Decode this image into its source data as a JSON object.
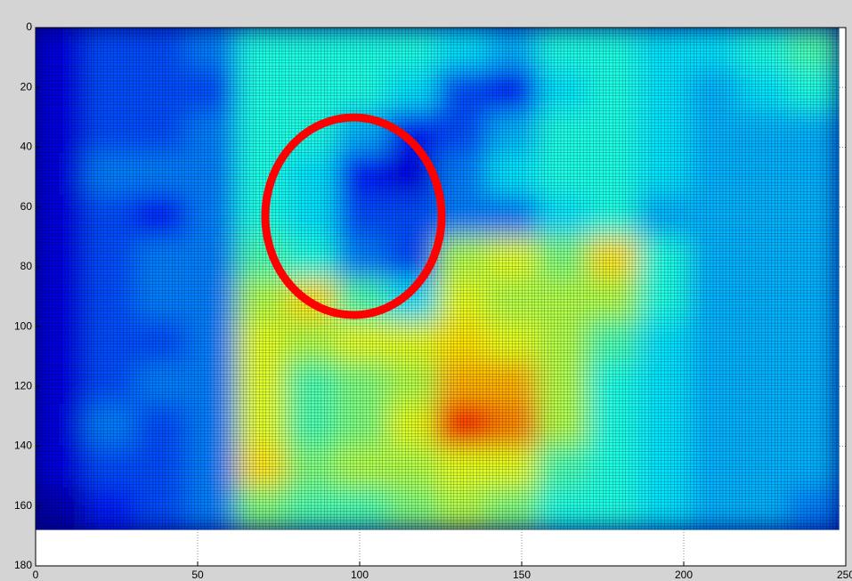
{
  "chart_data": {
    "type": "heatmap",
    "colormap": "jet",
    "clim": [
      0,
      1
    ],
    "xlim": [
      0,
      250
    ],
    "ylim": [
      0,
      180
    ],
    "xticks": [
      0,
      50,
      100,
      150,
      200,
      250
    ],
    "yticks": [
      0,
      20,
      40,
      60,
      80,
      100,
      120,
      140,
      160,
      180
    ],
    "grid": true,
    "extent": [
      0,
      248,
      0,
      168
    ],
    "values": [
      [
        0.1,
        0.2,
        0.2,
        0.25,
        0.4,
        0.4,
        0.4,
        0.4,
        0.35,
        0.3,
        0.4,
        0.4,
        0.35,
        0.35,
        0.4,
        0.45
      ],
      [
        0.1,
        0.2,
        0.2,
        0.2,
        0.4,
        0.4,
        0.4,
        0.35,
        0.2,
        0.15,
        0.35,
        0.4,
        0.35,
        0.3,
        0.35,
        0.4
      ],
      [
        0.1,
        0.2,
        0.2,
        0.25,
        0.4,
        0.4,
        0.3,
        0.15,
        0.2,
        0.3,
        0.4,
        0.4,
        0.35,
        0.3,
        0.3,
        0.3
      ],
      [
        0.1,
        0.25,
        0.25,
        0.25,
        0.4,
        0.35,
        0.15,
        0.1,
        0.25,
        0.35,
        0.4,
        0.4,
        0.35,
        0.3,
        0.3,
        0.3
      ],
      [
        0.1,
        0.2,
        0.15,
        0.25,
        0.4,
        0.35,
        0.2,
        0.2,
        0.25,
        0.25,
        0.35,
        0.4,
        0.3,
        0.3,
        0.3,
        0.3
      ],
      [
        0.1,
        0.2,
        0.25,
        0.25,
        0.45,
        0.4,
        0.25,
        0.2,
        0.55,
        0.6,
        0.5,
        0.65,
        0.4,
        0.3,
        0.3,
        0.3
      ],
      [
        0.1,
        0.2,
        0.25,
        0.25,
        0.55,
        0.65,
        0.45,
        0.35,
        0.6,
        0.55,
        0.55,
        0.55,
        0.4,
        0.3,
        0.3,
        0.3
      ],
      [
        0.1,
        0.2,
        0.2,
        0.25,
        0.6,
        0.55,
        0.6,
        0.6,
        0.65,
        0.6,
        0.55,
        0.45,
        0.35,
        0.3,
        0.3,
        0.3
      ],
      [
        0.1,
        0.2,
        0.25,
        0.25,
        0.6,
        0.45,
        0.5,
        0.55,
        0.7,
        0.7,
        0.55,
        0.4,
        0.35,
        0.3,
        0.3,
        0.3
      ],
      [
        0.1,
        0.25,
        0.2,
        0.25,
        0.6,
        0.45,
        0.5,
        0.6,
        0.85,
        0.75,
        0.55,
        0.4,
        0.35,
        0.3,
        0.3,
        0.3
      ],
      [
        0.1,
        0.2,
        0.2,
        0.25,
        0.65,
        0.5,
        0.55,
        0.55,
        0.6,
        0.6,
        0.45,
        0.4,
        0.35,
        0.3,
        0.3,
        0.3
      ],
      [
        0.05,
        0.15,
        0.2,
        0.25,
        0.5,
        0.45,
        0.45,
        0.5,
        0.55,
        0.5,
        0.4,
        0.4,
        0.35,
        0.3,
        0.3,
        0.25
      ]
    ]
  }
}
